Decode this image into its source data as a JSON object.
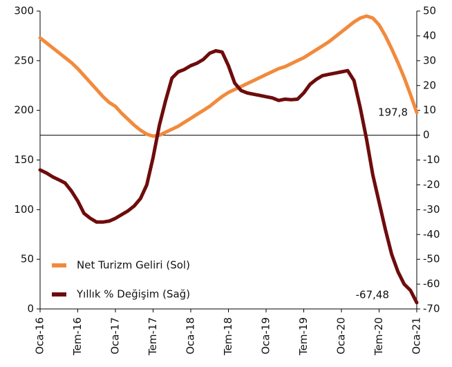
{
  "chart_data": {
    "type": "line",
    "categories": [
      "Oca-16",
      null,
      null,
      null,
      null,
      null,
      "Tem-16",
      null,
      null,
      null,
      null,
      null,
      "Oca-17",
      null,
      null,
      null,
      null,
      null,
      "Tem-17",
      null,
      null,
      null,
      null,
      null,
      "Oca-18",
      null,
      null,
      null,
      null,
      null,
      "Tem-18",
      null,
      null,
      null,
      null,
      null,
      "Oca-19",
      null,
      null,
      null,
      null,
      null,
      "Tem-19",
      null,
      null,
      null,
      null,
      null,
      "Oca-20",
      null,
      null,
      null,
      null,
      null,
      "Tem-20",
      null,
      null,
      null,
      null,
      null,
      "Oca-21"
    ],
    "series": [
      {
        "name": "Net Turizm Geliri (Sol)",
        "color": "#f28a3c",
        "axis": "y",
        "values": [
          273,
          268,
          263,
          258,
          253,
          248,
          242,
          235,
          228,
          221,
          214,
          208,
          204,
          197,
          191,
          185,
          180,
          176,
          174,
          175,
          178,
          181,
          184,
          188,
          192,
          196,
          200,
          204,
          209,
          214,
          218,
          221,
          224,
          227,
          230,
          233,
          236,
          239,
          242,
          244,
          247,
          250,
          253,
          257,
          261,
          265,
          269,
          274,
          279,
          284,
          289,
          293,
          295,
          293,
          286,
          275,
          262,
          248,
          233,
          216,
          197.8
        ],
        "value_labels": [
          null,
          null,
          null,
          null,
          null,
          null,
          null,
          null,
          null,
          null,
          null,
          null,
          null,
          null,
          null,
          null,
          null,
          null,
          null,
          null,
          null,
          null,
          null,
          null,
          null,
          null,
          null,
          null,
          null,
          null,
          null,
          null,
          null,
          null,
          null,
          null,
          null,
          null,
          null,
          null,
          null,
          null,
          null,
          null,
          null,
          null,
          null,
          null,
          null,
          null,
          null,
          null,
          null,
          null,
          null,
          null,
          null,
          null,
          null,
          null,
          "197,8"
        ]
      },
      {
        "name": "Yıllık % Değişim (Sağ)",
        "color": "#6e0c0c",
        "axis": "y2",
        "values": [
          -14,
          -15.2,
          -16.8,
          -18,
          -19.3,
          -22.5,
          -26.5,
          -31.5,
          -33.5,
          -35,
          -35,
          -34.6,
          -33.5,
          -32,
          -30.5,
          -28.5,
          -25.5,
          -20,
          -9,
          4,
          14,
          23,
          25.5,
          26.5,
          28,
          29,
          30.5,
          33,
          34,
          33.5,
          28,
          21,
          18,
          17,
          16.5,
          16,
          15.5,
          15,
          14,
          14.5,
          14.3,
          14.5,
          17,
          20.5,
          22.5,
          24,
          24.5,
          25,
          25.5,
          26,
          22,
          11,
          -1.5,
          -16,
          -27,
          -38,
          -48,
          -55,
          -60,
          -62.5,
          -67.48
        ],
        "value_labels": [
          null,
          null,
          null,
          null,
          null,
          null,
          null,
          null,
          null,
          null,
          null,
          null,
          null,
          null,
          null,
          null,
          null,
          null,
          null,
          null,
          null,
          null,
          null,
          null,
          null,
          null,
          null,
          null,
          null,
          null,
          null,
          null,
          null,
          null,
          null,
          null,
          null,
          null,
          null,
          null,
          null,
          null,
          null,
          null,
          null,
          null,
          null,
          null,
          null,
          null,
          null,
          null,
          null,
          null,
          null,
          null,
          null,
          null,
          null,
          null,
          "-67,48"
        ]
      }
    ],
    "ylim": [
      0,
      300
    ],
    "yticks": [
      0,
      50,
      100,
      150,
      200,
      250,
      300
    ],
    "y2lim": [
      -70,
      50
    ],
    "y2ticks": [
      -70,
      -60,
      -50,
      -40,
      -30,
      -20,
      -10,
      0,
      10,
      20,
      30,
      40,
      50
    ],
    "legend": "lower left"
  }
}
